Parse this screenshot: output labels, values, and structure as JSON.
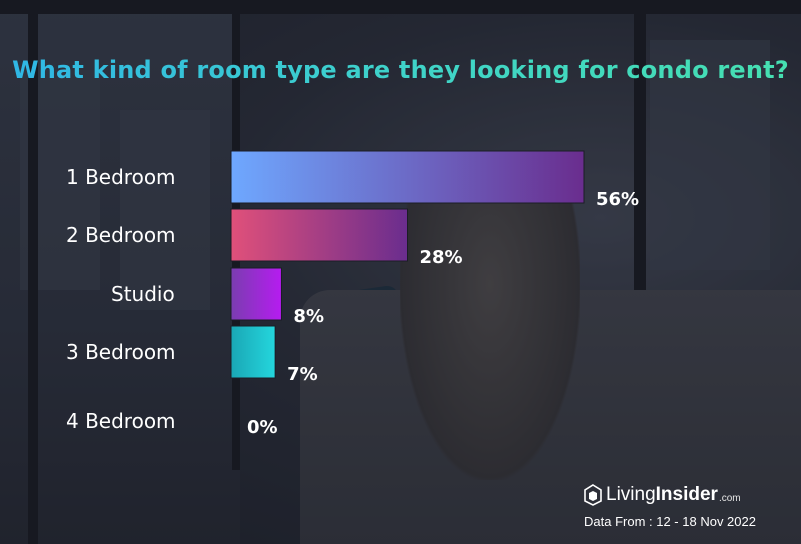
{
  "chart_data": {
    "type": "bar",
    "orientation": "horizontal",
    "title": "What kind of room type are they looking for condo rent?",
    "categories": [
      "1 Bedroom",
      "2 Bedroom",
      "Studio",
      "3 Bedroom",
      "4 Bedroom"
    ],
    "values": [
      56,
      28,
      8,
      7,
      0
    ],
    "value_labels": [
      "56%",
      "28%",
      "8%",
      "7%",
      "0%"
    ],
    "xlim": [
      0,
      56
    ],
    "grid": false,
    "colors": [
      [
        "#6ea8ff",
        "#6a2d8e"
      ],
      [
        "#e0507a",
        "#6a2d8e"
      ],
      [
        "#7a3db0",
        "#b61cf0"
      ],
      [
        "#1aa7b5",
        "#24d6dd"
      ],
      [
        "#888888",
        "#888888"
      ]
    ]
  },
  "brand": {
    "name_light": "Living",
    "name_bold": "Insider",
    "suffix": ".com",
    "icon": "living-insider-logo-icon"
  },
  "source": "Data From :  12 - 18 Nov 2022"
}
